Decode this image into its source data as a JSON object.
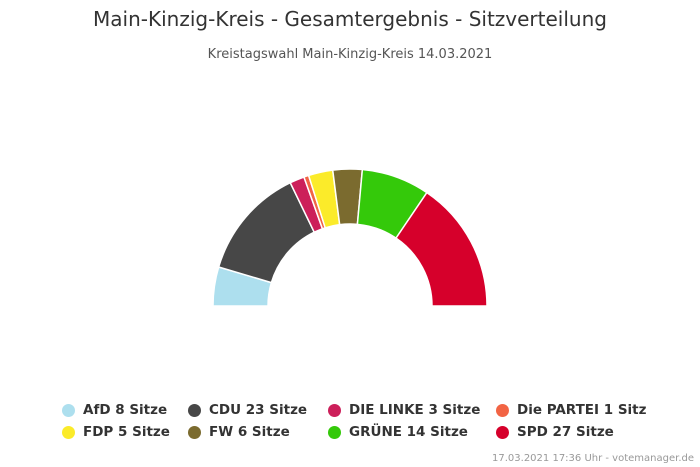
{
  "chart_data": {
    "type": "pie",
    "variant": "semicircle-parliament",
    "title": "Main-Kinzig-Kreis - Gesamtergebnis - Sitzverteilung",
    "subtitle": "Kreistagswahl Main-Kinzig-Kreis 14.03.2021",
    "legend_position": "bottom",
    "series": [
      {
        "name": "AfD",
        "value": 8,
        "label": "AfD 8 Sitze",
        "color": "#addfee"
      },
      {
        "name": "CDU",
        "value": 23,
        "label": "CDU 23 Sitze",
        "color": "#474747"
      },
      {
        "name": "DIE LINKE",
        "value": 3,
        "label": "DIE LINKE 3 Sitze",
        "color": "#cc1f5a"
      },
      {
        "name": "Die PARTEI",
        "value": 1,
        "label": "Die PARTEI 1 Sitz",
        "color": "#f26444"
      },
      {
        "name": "FDP",
        "value": 5,
        "label": "FDP 5 Sitze",
        "color": "#fbeb2a"
      },
      {
        "name": "FW",
        "value": 6,
        "label": "FW 6 Sitze",
        "color": "#7b6b2f"
      },
      {
        "name": "GRÜNE",
        "value": 14,
        "label": "GRÜNE 14 Sitze",
        "color": "#34c90a"
      },
      {
        "name": "SPD",
        "value": 27,
        "label": "SPD 27 Sitze",
        "color": "#d6002b"
      }
    ]
  },
  "footer": "17.03.2021 17:36 Uhr - votemanager.de"
}
